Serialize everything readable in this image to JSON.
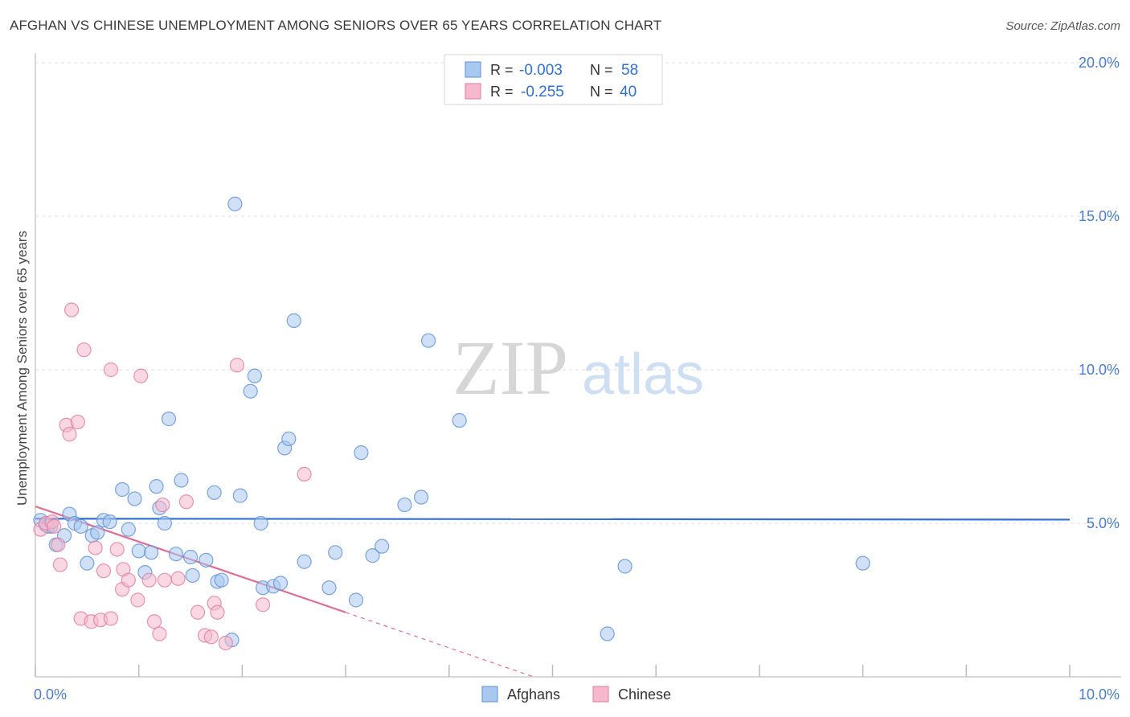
{
  "header": {
    "title": "AFGHAN VS CHINESE UNEMPLOYMENT AMONG SENIORS OVER 65 YEARS CORRELATION CHART",
    "source": "Source: ZipAtlas.com"
  },
  "watermark": {
    "zip": "ZIP",
    "atlas": "atlas"
  },
  "colors": {
    "afghans_fill": "#a9c8f0",
    "afghans_stroke": "#5b8fd6",
    "afghans_line": "#2f6fd6",
    "chinese_fill": "#f5b8cc",
    "chinese_stroke": "#e07a9f",
    "chinese_line": "#e06c96",
    "tick_label": "#4a7cc9",
    "grid": "#dddddd"
  },
  "chart_data": {
    "type": "scatter",
    "title": "AFGHAN VS CHINESE UNEMPLOYMENT AMONG SENIORS OVER 65 YEARS CORRELATION CHART",
    "xlabel": "",
    "ylabel": "Unemployment Among Seniors over 65 years",
    "xlim": [
      0,
      10
    ],
    "ylim": [
      0,
      20
    ],
    "x_tick_labels": [
      {
        "value": 0,
        "label": "0.0%"
      },
      {
        "value": 10,
        "label": "10.0%"
      }
    ],
    "y_tick_labels": [
      {
        "value": 5,
        "label": "5.0%"
      },
      {
        "value": 10,
        "label": "10.0%"
      },
      {
        "value": 15,
        "label": "15.0%"
      },
      {
        "value": 20,
        "label": "20.0%"
      }
    ],
    "legend": {
      "top": [
        {
          "r_label": "R =",
          "r_value": "-0.003",
          "n_label": "N =",
          "n_value": "58"
        },
        {
          "r_label": "R =",
          "r_value": "-0.255",
          "n_label": "N =",
          "n_value": "40"
        }
      ],
      "bottom": [
        "Afghans",
        "Chinese"
      ]
    },
    "series": [
      {
        "name": "Afghans",
        "trend": {
          "x": [
            0,
            10
          ],
          "y": [
            5.15,
            5.12
          ]
        },
        "points": [
          [
            0.05,
            5.1
          ],
          [
            0.1,
            4.95
          ],
          [
            0.15,
            4.9
          ],
          [
            0.2,
            4.3
          ],
          [
            0.28,
            4.6
          ],
          [
            0.33,
            5.3
          ],
          [
            0.38,
            5.0
          ],
          [
            0.44,
            4.9
          ],
          [
            0.5,
            3.7
          ],
          [
            0.55,
            4.6
          ],
          [
            0.6,
            4.7
          ],
          [
            0.66,
            5.1
          ],
          [
            0.72,
            5.05
          ],
          [
            0.84,
            6.1
          ],
          [
            0.9,
            4.8
          ],
          [
            0.96,
            5.8
          ],
          [
            1.0,
            4.1
          ],
          [
            1.06,
            3.4
          ],
          [
            1.12,
            4.05
          ],
          [
            1.17,
            6.2
          ],
          [
            1.2,
            5.5
          ],
          [
            1.25,
            5.0
          ],
          [
            1.29,
            8.4
          ],
          [
            1.36,
            4.0
          ],
          [
            1.41,
            6.4
          ],
          [
            1.5,
            3.9
          ],
          [
            1.52,
            3.3
          ],
          [
            1.65,
            3.8
          ],
          [
            1.73,
            6.0
          ],
          [
            1.76,
            3.1
          ],
          [
            1.8,
            3.15
          ],
          [
            1.9,
            1.2
          ],
          [
            1.93,
            15.4
          ],
          [
            1.98,
            5.9
          ],
          [
            2.08,
            9.3
          ],
          [
            2.12,
            9.8
          ],
          [
            2.18,
            5.0
          ],
          [
            2.2,
            2.9
          ],
          [
            2.3,
            2.95
          ],
          [
            2.37,
            3.05
          ],
          [
            2.41,
            7.45
          ],
          [
            2.45,
            7.75
          ],
          [
            2.5,
            11.6
          ],
          [
            2.6,
            3.75
          ],
          [
            2.84,
            2.9
          ],
          [
            2.9,
            4.05
          ],
          [
            3.1,
            2.5
          ],
          [
            3.15,
            7.3
          ],
          [
            3.26,
            3.95
          ],
          [
            3.35,
            4.25
          ],
          [
            3.57,
            5.6
          ],
          [
            3.73,
            5.85
          ],
          [
            3.8,
            10.95
          ],
          [
            4.1,
            8.35
          ],
          [
            5.53,
            1.4
          ],
          [
            5.7,
            3.6
          ],
          [
            8.0,
            3.7
          ],
          [
            0.12,
            4.9
          ]
        ]
      },
      {
        "name": "Chinese",
        "trend": {
          "x": [
            0,
            3.0
          ],
          "y": [
            5.55,
            2.1
          ]
        },
        "trend_extended": {
          "x": [
            3.0,
            4.8
          ],
          "y": [
            2.1,
            0.02
          ]
        },
        "points": [
          [
            0.05,
            4.8
          ],
          [
            0.1,
            5.0
          ],
          [
            0.16,
            5.05
          ],
          [
            0.18,
            4.9
          ],
          [
            0.22,
            4.3
          ],
          [
            0.24,
            3.65
          ],
          [
            0.3,
            8.2
          ],
          [
            0.33,
            7.9
          ],
          [
            0.35,
            11.95
          ],
          [
            0.41,
            8.3
          ],
          [
            0.44,
            1.9
          ],
          [
            0.47,
            10.65
          ],
          [
            0.54,
            1.8
          ],
          [
            0.58,
            4.2
          ],
          [
            0.63,
            1.85
          ],
          [
            0.66,
            3.45
          ],
          [
            0.73,
            1.9
          ],
          [
            0.73,
            10.0
          ],
          [
            0.79,
            4.15
          ],
          [
            0.84,
            2.85
          ],
          [
            0.85,
            3.5
          ],
          [
            0.9,
            3.15
          ],
          [
            0.99,
            2.5
          ],
          [
            1.02,
            9.8
          ],
          [
            1.1,
            3.15
          ],
          [
            1.15,
            1.8
          ],
          [
            1.2,
            1.4
          ],
          [
            1.23,
            5.6
          ],
          [
            1.25,
            3.15
          ],
          [
            1.38,
            3.2
          ],
          [
            1.46,
            5.7
          ],
          [
            1.57,
            2.1
          ],
          [
            1.64,
            1.35
          ],
          [
            1.7,
            1.3
          ],
          [
            1.73,
            2.4
          ],
          [
            1.76,
            2.1
          ],
          [
            1.84,
            1.1
          ],
          [
            1.95,
            10.15
          ],
          [
            2.2,
            2.35
          ],
          [
            2.6,
            6.6
          ]
        ]
      }
    ]
  }
}
